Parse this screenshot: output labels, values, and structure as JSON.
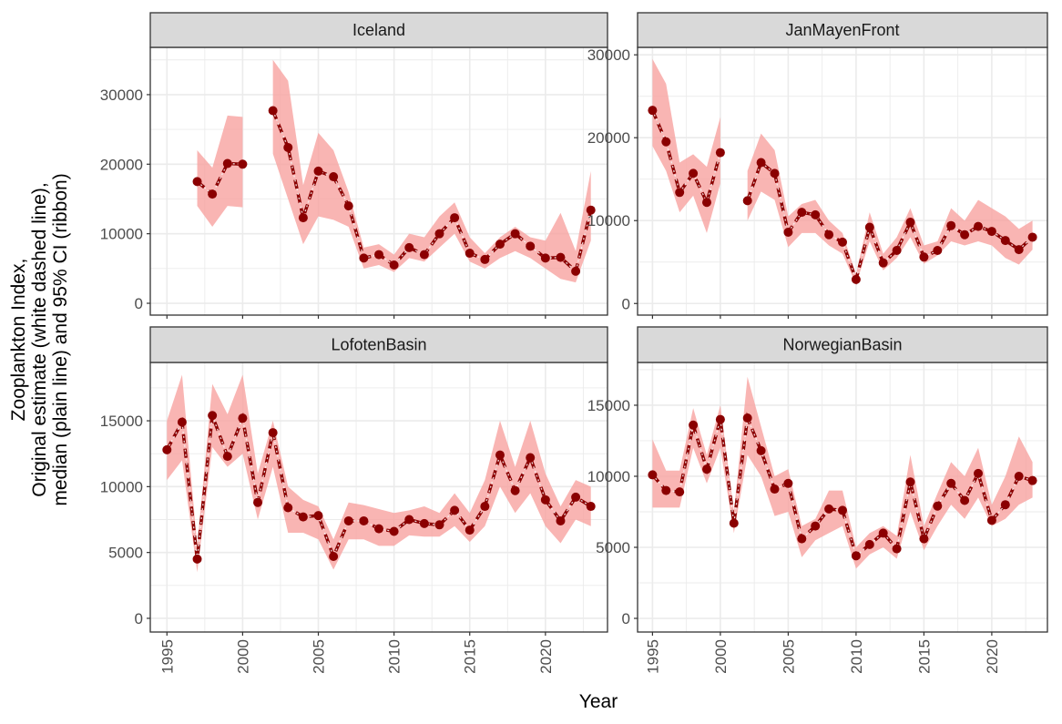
{
  "chart_data": {
    "type": "line",
    "xlabel": "Year",
    "ylabel": [
      "Zooplankton Index,",
      "Original estimate (white dashed line),",
      "median (plain line) and 95% CI (ribbon)"
    ],
    "x_ticks": [
      1995,
      2000,
      2005,
      2010,
      2015,
      2020
    ],
    "xlim": [
      1993.9,
      2024.1
    ],
    "colors": {
      "line": "#8b0000",
      "ribbon": "#f8a3a0",
      "dash": "#f2f2f2",
      "grid": "#ebebeb",
      "strip": "#d9d9d9"
    },
    "panels": [
      {
        "title": "Iceland",
        "ylim": [
          -1700,
          36800
        ],
        "y_ticks": [
          0,
          10000,
          20000,
          30000
        ],
        "x": [
          1997,
          1998,
          1999,
          2000,
          2001,
          2002,
          2003,
          2004,
          2005,
          2006,
          2007,
          2008,
          2009,
          2010,
          2011,
          2012,
          2013,
          2014,
          2015,
          2016,
          2017,
          2018,
          2019,
          2020,
          2021,
          2022,
          2023
        ],
        "y": [
          17500,
          15700,
          20100,
          20000,
          null,
          27700,
          22400,
          12300,
          19000,
          18200,
          14000,
          6500,
          7000,
          5500,
          8000,
          7000,
          10000,
          12300,
          7200,
          6300,
          8500,
          10000,
          8200,
          6500,
          6600,
          4600,
          13400
        ],
        "lo": [
          14000,
          11000,
          14000,
          13800,
          null,
          21500,
          15000,
          8500,
          12500,
          12000,
          11000,
          5000,
          5500,
          4500,
          6500,
          6000,
          8000,
          10000,
          6000,
          5000,
          6500,
          7500,
          6500,
          5000,
          3500,
          3000,
          9000
        ],
        "hi": [
          22000,
          19500,
          27000,
          26800,
          null,
          35000,
          32000,
          17000,
          24500,
          22000,
          16000,
          8000,
          8500,
          7000,
          10000,
          9500,
          12500,
          14500,
          9500,
          7200,
          9500,
          11000,
          9500,
          9000,
          13000,
          7500,
          19000
        ]
      },
      {
        "title": "JanMayenFront",
        "ylim": [
          -1400,
          30900
        ],
        "y_ticks": [
          0,
          10000,
          20000,
          30000
        ],
        "x": [
          1995,
          1996,
          1997,
          1998,
          1999,
          2000,
          2001,
          2002,
          2003,
          2004,
          2005,
          2006,
          2007,
          2008,
          2009,
          2010,
          2011,
          2012,
          2013,
          2014,
          2015,
          2016,
          2017,
          2018,
          2019,
          2020,
          2021,
          2022,
          2023
        ],
        "y": [
          23300,
          19500,
          13400,
          15700,
          12200,
          18200,
          null,
          12400,
          17000,
          15700,
          8600,
          11000,
          10700,
          8300,
          7400,
          2900,
          9200,
          4900,
          6400,
          9800,
          5600,
          6400,
          9400,
          8300,
          9300,
          8700,
          7600,
          6500,
          8000
        ],
        "lo": [
          19000,
          16000,
          11000,
          13000,
          8500,
          14500,
          null,
          10000,
          13500,
          12500,
          6800,
          8500,
          8500,
          7000,
          6000,
          2300,
          7500,
          4000,
          5500,
          8000,
          4800,
          5800,
          7500,
          7000,
          7500,
          7000,
          5500,
          4700,
          6500
        ],
        "hi": [
          29500,
          26500,
          17000,
          18000,
          16500,
          22500,
          null,
          16000,
          20500,
          18500,
          10500,
          12000,
          12500,
          10000,
          8500,
          3500,
          11000,
          6000,
          8000,
          11500,
          7000,
          7500,
          11500,
          10000,
          12500,
          11500,
          10500,
          9000,
          10000
        ]
      },
      {
        "title": "LofotenBasin",
        "ylim": [
          -1040,
          19430
        ],
        "y_ticks": [
          0,
          5000,
          10000,
          15000
        ],
        "x": [
          1995,
          1996,
          1997,
          1998,
          1999,
          2000,
          2001,
          2002,
          2003,
          2004,
          2005,
          2006,
          2007,
          2008,
          2009,
          2010,
          2011,
          2012,
          2013,
          2014,
          2015,
          2016,
          2017,
          2018,
          2019,
          2020,
          2021,
          2022,
          2023
        ],
        "y": [
          12800,
          14900,
          4500,
          15400,
          12300,
          15200,
          8800,
          14100,
          8400,
          7700,
          7800,
          4700,
          7400,
          7400,
          6800,
          6600,
          7500,
          7200,
          7100,
          8200,
          6700,
          8500,
          12400,
          9700,
          12200,
          9000,
          7400,
          9200,
          8500
        ],
        "lo": [
          10500,
          12000,
          3500,
          13000,
          11500,
          12500,
          7500,
          11500,
          6500,
          6500,
          6000,
          3700,
          6000,
          6000,
          5500,
          5500,
          6300,
          6200,
          6200,
          7000,
          5800,
          7000,
          10000,
          8000,
          9500,
          7000,
          5700,
          7500,
          7000
        ],
        "hi": [
          15000,
          18500,
          5500,
          17800,
          15500,
          18500,
          11000,
          15000,
          10000,
          9000,
          8500,
          6000,
          8800,
          8600,
          8300,
          8000,
          8200,
          8500,
          8000,
          9500,
          8000,
          10500,
          15000,
          11500,
          15000,
          11000,
          8500,
          10500,
          10000
        ]
      },
      {
        "title": "NorwegianBasin",
        "ylim": [
          -960,
          18010
        ],
        "y_ticks": [
          0,
          5000,
          10000,
          15000
        ],
        "x": [
          1995,
          1996,
          1997,
          1998,
          1999,
          2000,
          2001,
          2002,
          2003,
          2004,
          2005,
          2006,
          2007,
          2008,
          2009,
          2010,
          2011,
          2012,
          2013,
          2014,
          2015,
          2016,
          2017,
          2018,
          2019,
          2020,
          2021,
          2022,
          2023
        ],
        "y": [
          10100,
          9000,
          8900,
          13600,
          10500,
          14000,
          6700,
          14100,
          11800,
          9100,
          9500,
          5600,
          6500,
          7700,
          7600,
          4400,
          5200,
          6000,
          4900,
          9600,
          5600,
          7900,
          9500,
          8300,
          10200,
          6900,
          8000,
          10000,
          9700
        ],
        "lo": [
          7800,
          7800,
          7800,
          12000,
          9500,
          12000,
          6000,
          11500,
          10000,
          7200,
          7500,
          4300,
          5500,
          6000,
          6500,
          3500,
          4500,
          5000,
          4200,
          7500,
          4800,
          6500,
          8000,
          7000,
          8500,
          6500,
          7000,
          8000,
          8500
        ],
        "hi": [
          12600,
          10400,
          10400,
          14800,
          11500,
          15000,
          7500,
          17000,
          13500,
          10000,
          10500,
          6500,
          7000,
          9000,
          9000,
          5000,
          6000,
          6500,
          5800,
          11500,
          6500,
          8800,
          11000,
          10000,
          12000,
          8000,
          10000,
          12800,
          11000
        ]
      }
    ]
  }
}
